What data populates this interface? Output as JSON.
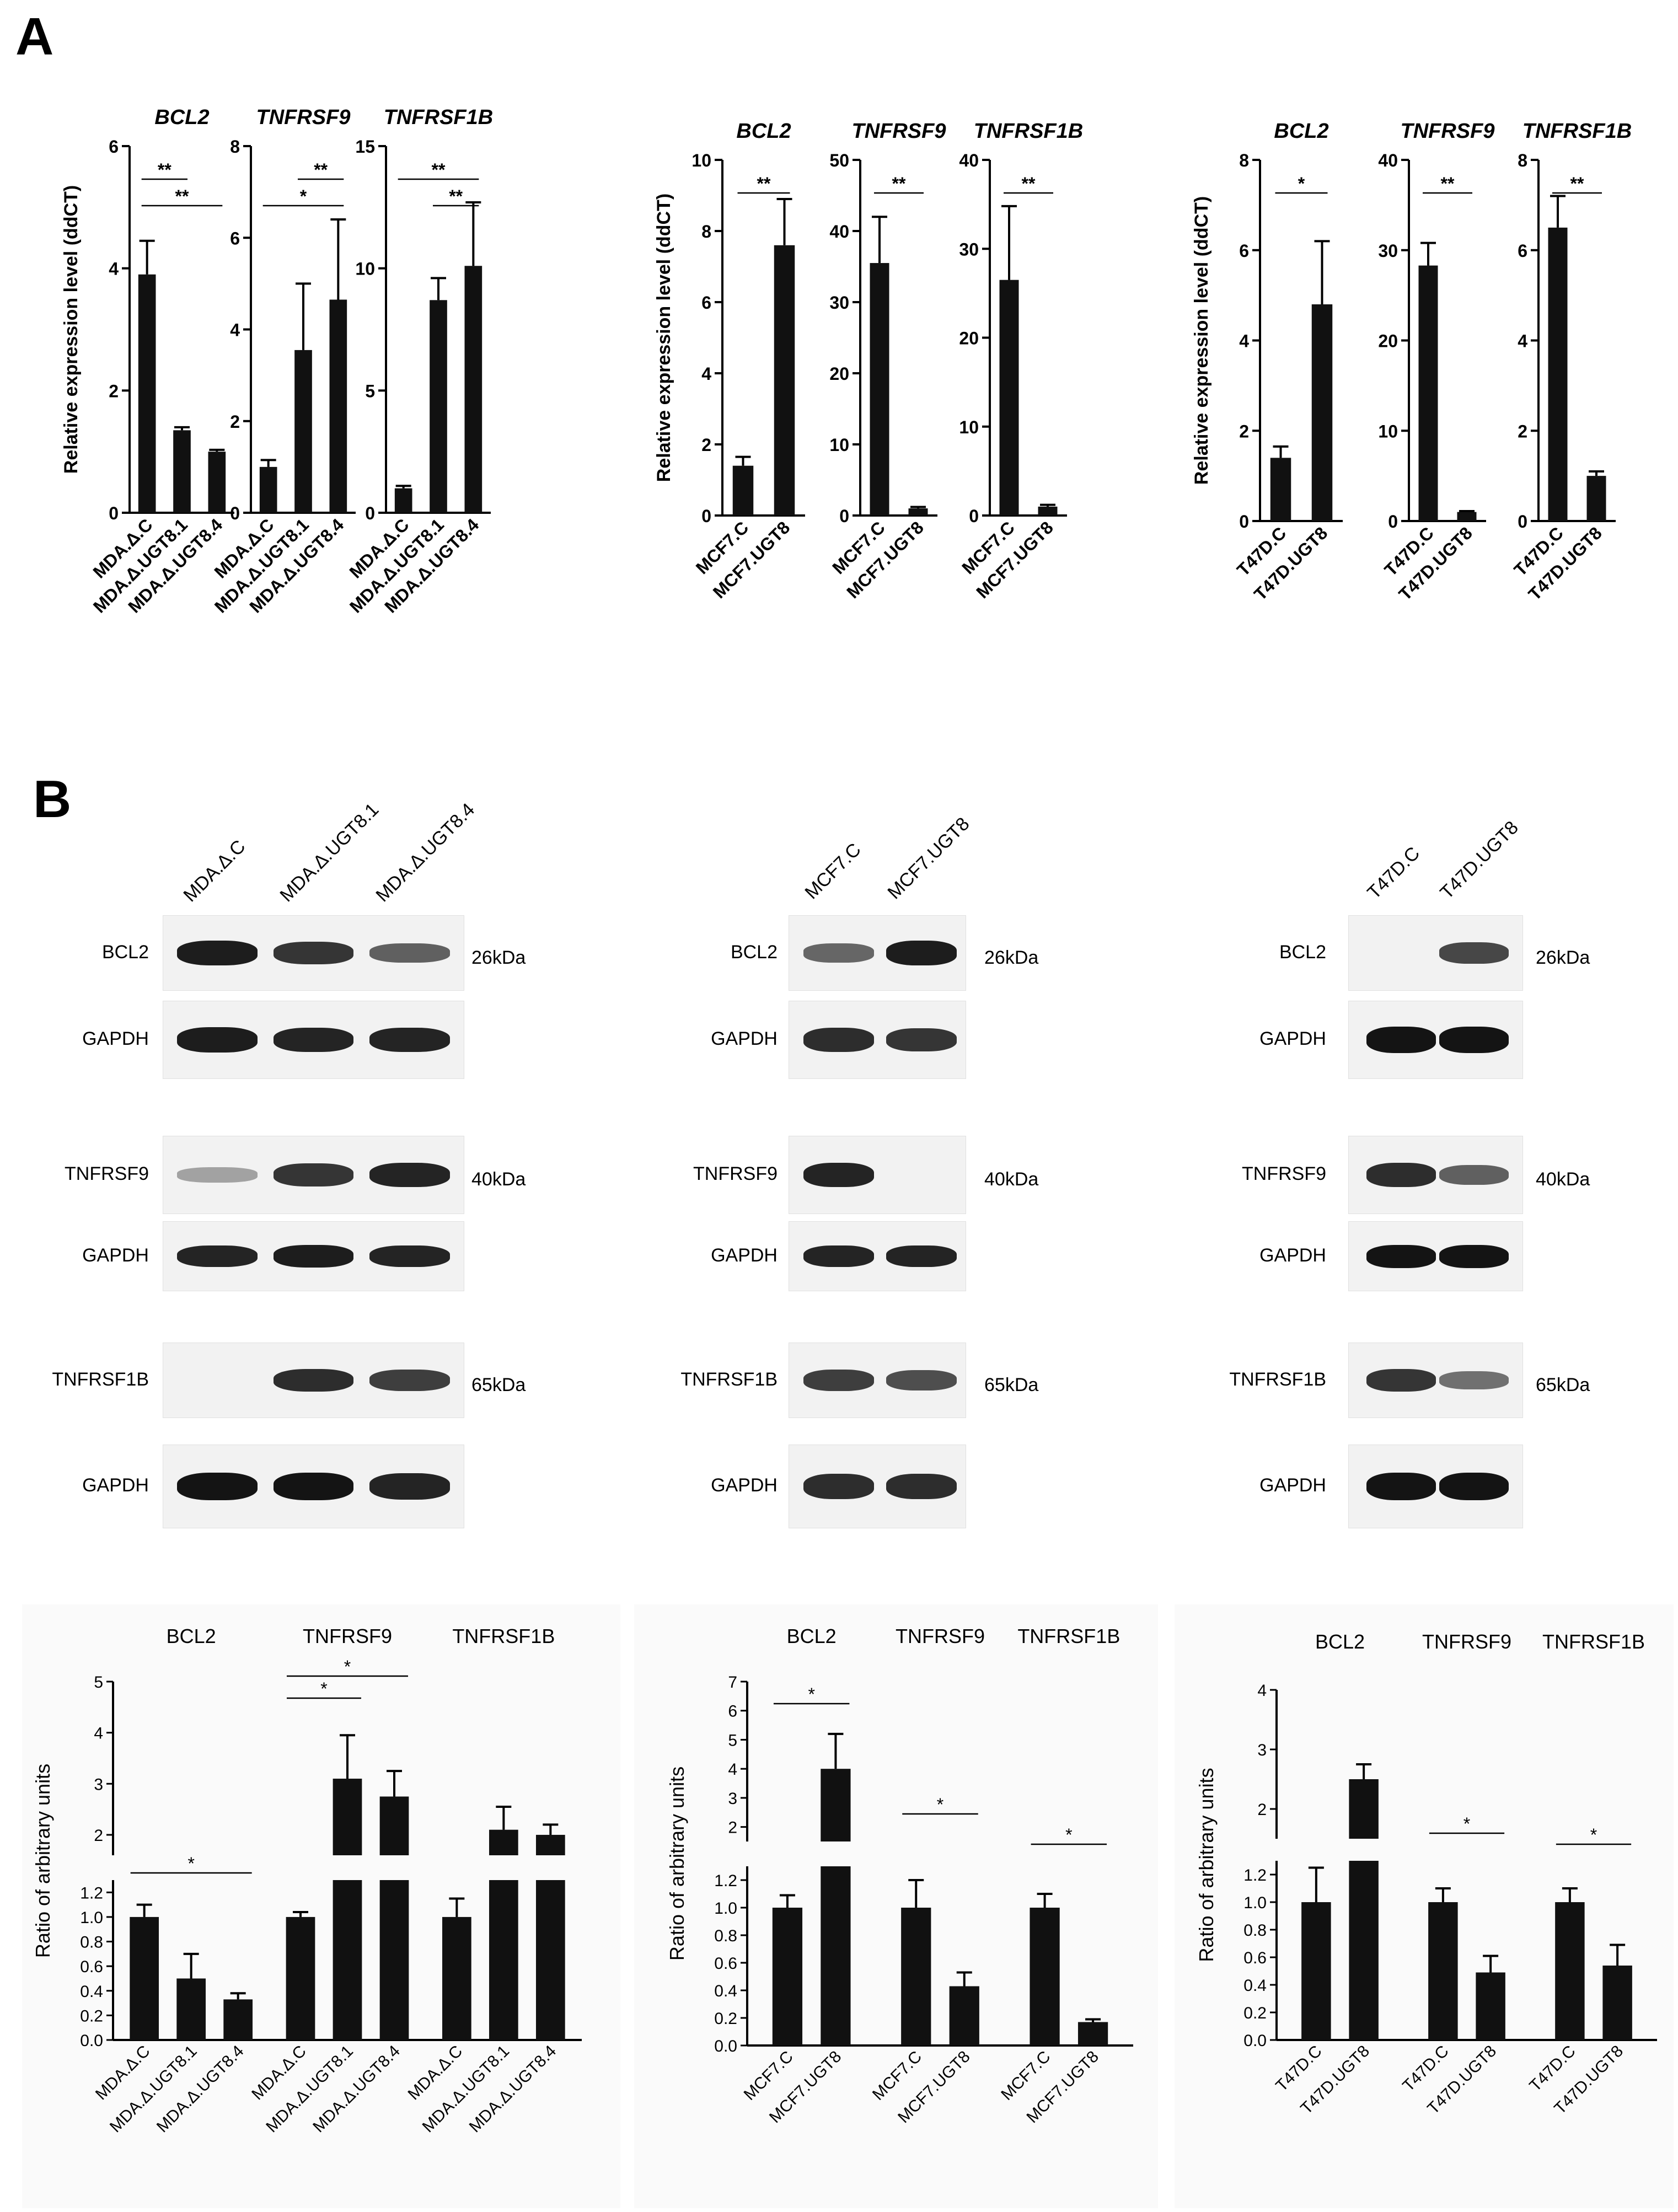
{
  "panel_labels": [
    "A",
    "B"
  ],
  "colors": {
    "bar": "#111111",
    "blot_bg": "#f2f2f2",
    "band": "#1a1a1a",
    "bg_B": "#fafafa"
  },
  "chart_data": [
    {
      "type": "bar",
      "id": "A1",
      "title": "BCL2",
      "ylabel": "Relative expression level (ddCT)",
      "categories": [
        "MDA.Δ.C",
        "MDA.Δ.UGT8.1",
        "MDA.Δ.UGT8.4"
      ],
      "values": [
        3.9,
        1.35,
        1.0
      ],
      "errors": [
        0.55,
        0.05,
        0.03
      ],
      "ylim": [
        0,
        6
      ],
      "yticks": [
        0,
        2,
        4,
        6
      ],
      "sig": [
        {
          "from": 0,
          "to": 1,
          "label": "**"
        },
        {
          "from": 0,
          "to": 2,
          "label": "**"
        }
      ]
    },
    {
      "type": "bar",
      "id": "A2",
      "title": "TNFRSF9",
      "ylabel": "",
      "categories": [
        "MDA.Δ.C",
        "MDA.Δ.UGT8.1",
        "MDA.Δ.UGT8.4"
      ],
      "values": [
        1.0,
        3.55,
        4.65
      ],
      "errors": [
        0.15,
        1.45,
        1.75
      ],
      "ylim": [
        0,
        8
      ],
      "yticks": [
        0,
        2,
        4,
        6,
        8
      ],
      "sig": [
        {
          "from": 1,
          "to": 2,
          "label": "**"
        },
        {
          "from": 0,
          "to": 2,
          "label": "*"
        }
      ]
    },
    {
      "type": "bar",
      "id": "A3",
      "title": "TNFRSF1B",
      "ylabel": "",
      "categories": [
        "MDA.Δ.C",
        "MDA.Δ.UGT8.1",
        "MDA.Δ.UGT8.4"
      ],
      "values": [
        1.0,
        8.7,
        10.1
      ],
      "errors": [
        0.1,
        0.9,
        2.6
      ],
      "ylim": [
        0,
        15
      ],
      "yticks": [
        0,
        5,
        10,
        15
      ],
      "sig": [
        {
          "from": 0,
          "to": 2,
          "label": "**"
        },
        {
          "from": 1,
          "to": 2,
          "label": "**"
        }
      ]
    },
    {
      "type": "bar",
      "id": "A4",
      "title": "BCL2",
      "ylabel": "Relative expression level (ddCT)",
      "categories": [
        "MCF7.C",
        "MCF7.UGT8"
      ],
      "values": [
        1.4,
        7.6
      ],
      "errors": [
        0.25,
        1.3
      ],
      "ylim": [
        0,
        10
      ],
      "yticks": [
        0,
        2,
        4,
        6,
        8,
        10
      ],
      "sig": [
        {
          "from": 0,
          "to": 1,
          "label": "**"
        }
      ]
    },
    {
      "type": "bar",
      "id": "A5",
      "title": "TNFRSF9",
      "ylabel": "",
      "categories": [
        "MCF7.C",
        "MCF7.UGT8"
      ],
      "values": [
        35.5,
        1.0
      ],
      "errors": [
        6.5,
        0.2
      ],
      "ylim": [
        0,
        50
      ],
      "yticks": [
        0,
        10,
        20,
        30,
        40,
        50
      ],
      "sig": [
        {
          "from": 0,
          "to": 1,
          "label": "**"
        }
      ]
    },
    {
      "type": "bar",
      "id": "A6",
      "title": "TNFRSF1B",
      "ylabel": "",
      "categories": [
        "MCF7.C",
        "MCF7.UGT8"
      ],
      "values": [
        26.5,
        1.0
      ],
      "errors": [
        8.3,
        0.2
      ],
      "ylim": [
        0,
        40
      ],
      "yticks": [
        0,
        10,
        20,
        30,
        40
      ],
      "sig": [
        {
          "from": 0,
          "to": 1,
          "label": "**"
        }
      ]
    },
    {
      "type": "bar",
      "id": "A7",
      "title": "BCL2",
      "ylabel": "Relative expression level (ddCT)",
      "categories": [
        "T47D.C",
        "T47D.UGT8"
      ],
      "values": [
        1.4,
        4.8
      ],
      "errors": [
        0.25,
        1.4
      ],
      "ylim": [
        0,
        8
      ],
      "yticks": [
        0,
        2,
        4,
        6,
        8
      ],
      "sig": [
        {
          "from": 0,
          "to": 1,
          "label": "*"
        }
      ]
    },
    {
      "type": "bar",
      "id": "A8",
      "title": "TNFRSF9",
      "ylabel": "",
      "categories": [
        "T47D.C",
        "T47D.UGT8"
      ],
      "values": [
        28.3,
        1.0
      ],
      "errors": [
        2.5,
        0.1
      ],
      "ylim": [
        0,
        40
      ],
      "yticks": [
        0,
        10,
        20,
        30,
        40
      ],
      "sig": [
        {
          "from": 0,
          "to": 1,
          "label": "**"
        }
      ]
    },
    {
      "type": "bar",
      "id": "A9",
      "title": "TNFRSF1B",
      "ylabel": "",
      "categories": [
        "T47D.C",
        "T47D.UGT8"
      ],
      "values": [
        6.5,
        1.0
      ],
      "errors": [
        0.7,
        0.1
      ],
      "ylim": [
        0,
        8
      ],
      "yticks": [
        0,
        2,
        4,
        6,
        8
      ],
      "sig": [
        {
          "from": 0,
          "to": 1,
          "label": "**"
        }
      ]
    },
    {
      "type": "bar",
      "id": "B1",
      "ylabel": "Ratio of arbitrary units",
      "group_titles": [
        "BCL2",
        "TNFRSF9",
        "TNFRSF1B"
      ],
      "groups": [
        {
          "categories": [
            "MDA.Δ.C",
            "MDA.Δ.UGT8.1",
            "MDA.Δ.UGT8.4"
          ],
          "values": [
            1.0,
            0.5,
            0.33
          ],
          "errors": [
            0.1,
            0.2,
            0.05
          ]
        },
        {
          "categories": [
            "MDA.Δ.C",
            "MDA.Δ.UGT8.1",
            "MDA.Δ.UGT8.4"
          ],
          "values": [
            1.0,
            3.1,
            2.75
          ],
          "errors": [
            0.04,
            0.85,
            0.5
          ]
        },
        {
          "categories": [
            "MDA.Δ.C",
            "MDA.Δ.UGT8.1",
            "MDA.Δ.UGT8.4"
          ],
          "values": [
            1.0,
            2.1,
            2.0
          ],
          "errors": [
            0.15,
            0.45,
            0.2
          ]
        }
      ],
      "lower_ticks": [
        "0.0",
        "0.2",
        "0.4",
        "0.6",
        "0.8",
        "1.0",
        "1.2"
      ],
      "upper_ticks": [
        "2",
        "3",
        "4",
        "5"
      ],
      "lower_max": 1.3,
      "upper_range": [
        1.6,
        5
      ],
      "sig": [
        {
          "group": 0,
          "from": 0,
          "to": 2,
          "label": "*"
        },
        {
          "group": 1,
          "from": 0,
          "to": 1,
          "label": "*"
        },
        {
          "group": 1,
          "from": 0,
          "to": 2,
          "label": "*"
        }
      ]
    },
    {
      "type": "bar",
      "id": "B2",
      "ylabel": "Ratio of arbitrary units",
      "group_titles": [
        "BCL2",
        "TNFRSF9",
        "TNFRSF1B"
      ],
      "groups": [
        {
          "categories": [
            "MCF7.C",
            "MCF7.UGT8"
          ],
          "values": [
            1.0,
            4.0
          ],
          "errors": [
            0.09,
            1.2
          ]
        },
        {
          "categories": [
            "MCF7.C",
            "MCF7.UGT8"
          ],
          "values": [
            1.0,
            0.43
          ],
          "errors": [
            0.2,
            0.1
          ]
        },
        {
          "categories": [
            "MCF7.C",
            "MCF7.UGT8"
          ],
          "values": [
            1.0,
            0.17
          ],
          "errors": [
            0.1,
            0.02
          ]
        }
      ],
      "lower_ticks": [
        "0.0",
        "0.2",
        "0.4",
        "0.6",
        "0.8",
        "1.0",
        "1.2"
      ],
      "upper_ticks": [
        "2",
        "3",
        "4",
        "5",
        "6",
        "7"
      ],
      "lower_max": 1.3,
      "upper_range": [
        1.5,
        7
      ],
      "sig": [
        {
          "group": 0,
          "from": 0,
          "to": 1,
          "label": "*"
        },
        {
          "group": 1,
          "from": 0,
          "to": 1,
          "label": "*"
        },
        {
          "group": 2,
          "from": 0,
          "to": 1,
          "label": "*"
        }
      ]
    },
    {
      "type": "bar",
      "id": "B3",
      "ylabel": "Ratio of arbitrary units",
      "group_titles": [
        "BCL2",
        "TNFRSF9",
        "TNFRSF1B"
      ],
      "groups": [
        {
          "categories": [
            "T47D.C",
            "T47D.UGT8"
          ],
          "values": [
            1.0,
            2.5
          ],
          "errors": [
            0.25,
            0.25
          ]
        },
        {
          "categories": [
            "T47D.C",
            "T47D.UGT8"
          ],
          "values": [
            1.0,
            0.49
          ],
          "errors": [
            0.1,
            0.12
          ]
        },
        {
          "categories": [
            "T47D.C",
            "T47D.UGT8"
          ],
          "values": [
            1.0,
            0.54
          ],
          "errors": [
            0.1,
            0.15
          ]
        }
      ],
      "lower_ticks": [
        "0.0",
        "0.2",
        "0.4",
        "0.6",
        "0.8",
        "1.0",
        "1.2"
      ],
      "upper_ticks": [
        "2",
        "3",
        "4"
      ],
      "lower_max": 1.3,
      "upper_range": [
        1.5,
        4
      ],
      "sig": [
        {
          "group": 1,
          "from": 0,
          "to": 1,
          "label": "*"
        },
        {
          "group": 2,
          "from": 0,
          "to": 1,
          "label": "*"
        }
      ]
    }
  ],
  "blots": [
    {
      "lanes": [
        "MDA.Δ.C",
        "MDA.Δ.UGT8.1",
        "MDA.Δ.UGT8.4"
      ],
      "rows": [
        {
          "label": "BCL2",
          "kda": "26kDa",
          "bands": [
            0.95,
            0.8,
            0.55
          ]
        },
        {
          "label": "GAPDH",
          "kda": "",
          "bands": [
            0.95,
            0.9,
            0.9
          ]
        },
        {
          "label": "TNFRSF9",
          "kda": "40kDa",
          "bands": [
            0.15,
            0.8,
            0.9
          ]
        },
        {
          "label": "GAPDH",
          "kda": "",
          "bands": [
            0.9,
            0.95,
            0.9
          ]
        },
        {
          "label": "TNFRSF1B",
          "kda": "65kDa",
          "bands": [
            0.0,
            0.85,
            0.75
          ]
        },
        {
          "label": "GAPDH",
          "kda": "",
          "bands": [
            1.0,
            1.0,
            0.9
          ]
        }
      ]
    },
    {
      "lanes": [
        "MCF7.C",
        "MCF7.UGT8"
      ],
      "rows": [
        {
          "label": "BCL2",
          "kda": "26kDa",
          "bands": [
            0.5,
            0.95
          ]
        },
        {
          "label": "GAPDH",
          "kda": "",
          "bands": [
            0.85,
            0.8
          ]
        },
        {
          "label": "TNFRSF9",
          "kda": "40kDa",
          "bands": [
            0.9,
            0.0
          ]
        },
        {
          "label": "GAPDH",
          "kda": "",
          "bands": [
            0.9,
            0.9
          ]
        },
        {
          "label": "TNFRSF1B",
          "kda": "65kDa",
          "bands": [
            0.75,
            0.65
          ]
        },
        {
          "label": "GAPDH",
          "kda": "",
          "bands": [
            0.85,
            0.85
          ]
        }
      ]
    },
    {
      "lanes": [
        "T47D.C",
        "T47D.UGT8"
      ],
      "rows": [
        {
          "label": "BCL2",
          "kda": "26kDa",
          "bands": [
            0.0,
            0.7
          ]
        },
        {
          "label": "GAPDH",
          "kda": "",
          "bands": [
            1.0,
            1.0
          ]
        },
        {
          "label": "TNFRSF9",
          "kda": "40kDa",
          "bands": [
            0.85,
            0.55
          ]
        },
        {
          "label": "GAPDH",
          "kda": "",
          "bands": [
            1.0,
            1.0
          ]
        },
        {
          "label": "TNFRSF1B",
          "kda": "65kDa",
          "bands": [
            0.8,
            0.45
          ]
        },
        {
          "label": "GAPDH",
          "kda": "",
          "bands": [
            1.0,
            1.0
          ]
        }
      ]
    }
  ]
}
